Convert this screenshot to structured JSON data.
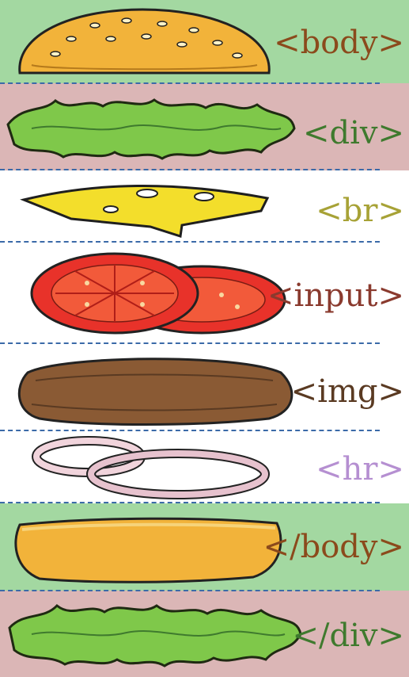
{
  "layers": [
    {
      "tag": "<body>",
      "color": "#8b4a1c",
      "band": "#a3d8a1",
      "icon": "top-bun-icon"
    },
    {
      "tag": "<div>",
      "color": "#3f7a2e",
      "band": "#dbb6b6",
      "icon": "lettuce-icon"
    },
    {
      "tag": "<br>",
      "color": "#a7a236",
      "band": "#ffffff",
      "icon": "cheese-icon"
    },
    {
      "tag": "<input>",
      "color": "#8a3a2e",
      "band": "#ffffff",
      "icon": "tomato-icon"
    },
    {
      "tag": "<img>",
      "color": "#5a3a22",
      "band": "#ffffff",
      "icon": "patty-icon"
    },
    {
      "tag": "<hr>",
      "color": "#b58fd1",
      "band": "#ffffff",
      "icon": "onion-icon"
    },
    {
      "tag": "</body>",
      "color": "#8b4a1c",
      "band": "#a3d8a1",
      "icon": "bottom-bun-icon"
    },
    {
      "tag": "</div>",
      "color": "#3f7a2e",
      "band": "#dbb6b6",
      "icon": "lettuce-icon"
    }
  ]
}
